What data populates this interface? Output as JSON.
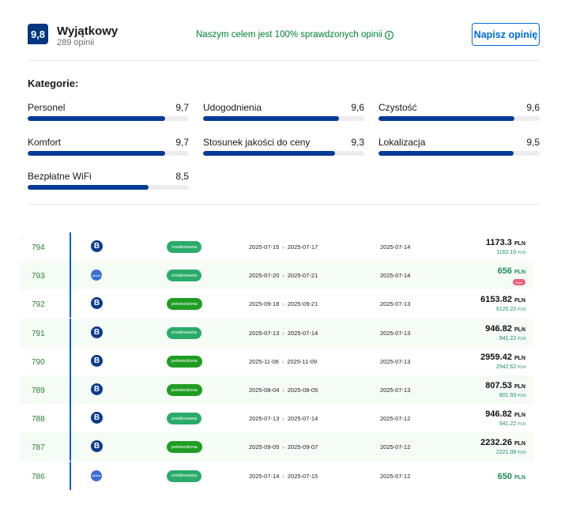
{
  "review": {
    "score": "9,8",
    "label": "Wyjątkowy",
    "count": "289 opinii",
    "verified_text": "Naszym celem jest 100% sprawdzonych opinii",
    "write_button": "Napisz opinię",
    "categories_title": "Kategorie:",
    "categories": [
      {
        "name": "Personel",
        "value": "9,7",
        "fill": 0.97
      },
      {
        "name": "Udogodnienia",
        "value": "9,6",
        "fill": 0.96
      },
      {
        "name": "Czystość",
        "value": "9,6",
        "fill": 0.96
      },
      {
        "name": "Komfort",
        "value": "9,7",
        "fill": 0.97
      },
      {
        "name": "Stosunek jakości do ceny",
        "value": "9,3",
        "fill": 0.93
      },
      {
        "name": "Lokalizacja",
        "value": "9,5",
        "fill": 0.95
      },
      {
        "name": "Bezpłatne WiFi",
        "value": "8,5",
        "fill": 0.85
      }
    ]
  },
  "bookings": {
    "marker": ":",
    "currency": "PLN",
    "rows": [
      {
        "id": "794",
        "source": "booking",
        "source_icon": "B",
        "status": "zrealizowana",
        "checkin": "2025-07-15",
        "checkout": "2025-07-17",
        "created": "2025-07-14",
        "price": "1173.3",
        "sub_price": "1162.10"
      },
      {
        "id": "793",
        "source": "airbnb",
        "source_icon": "airbnb",
        "status": "zrealizowana",
        "checkin": "2025-07-20",
        "checkout": "2025-07-21",
        "created": "2025-07-14",
        "price": "656",
        "tag": "Kara"
      },
      {
        "id": "792",
        "source": "booking",
        "source_icon": "B",
        "status": "potwierdzona",
        "checkin": "2025-09-18",
        "checkout": "2025-09-21",
        "created": "2025-07-13",
        "price": "6153.82",
        "sub_price": "6120.22"
      },
      {
        "id": "791",
        "source": "booking",
        "source_icon": "B",
        "status": "zrealizowana",
        "checkin": "2025-07-13",
        "checkout": "2025-07-14",
        "created": "2025-07-13",
        "price": "946.82",
        "sub_price": "941.22"
      },
      {
        "id": "790",
        "source": "booking",
        "source_icon": "B",
        "status": "potwierdzona",
        "checkin": "2025-11-06",
        "checkout": "2025-11-09",
        "created": "2025-07-13",
        "price": "2959.42",
        "sub_price": "2942.62"
      },
      {
        "id": "789",
        "source": "booking",
        "source_icon": "B",
        "status": "potwierdzona",
        "checkin": "2025-08-04",
        "checkout": "2025-08-05",
        "created": "2025-07-13",
        "price": "807.53",
        "sub_price": "801.93"
      },
      {
        "id": "788",
        "source": "booking",
        "source_icon": "B",
        "status": "zrealizowana",
        "checkin": "2025-07-13",
        "checkout": "2025-07-14",
        "created": "2025-07-12",
        "price": "946.82",
        "sub_price": "941.22"
      },
      {
        "id": "787",
        "source": "booking",
        "source_icon": "B",
        "status": "potwierdzona",
        "checkin": "2025-09-05",
        "checkout": "2025-09-07",
        "created": "2025-07-12",
        "price": "2232.26",
        "sub_price": "2221.06"
      },
      {
        "id": "786",
        "source": "airbnb",
        "source_icon": "airbnb",
        "status": "zrealizowana",
        "checkin": "2025-07-14",
        "checkout": "2025-07-15",
        "created": "2025-07-12",
        "price": "650"
      }
    ]
  }
}
